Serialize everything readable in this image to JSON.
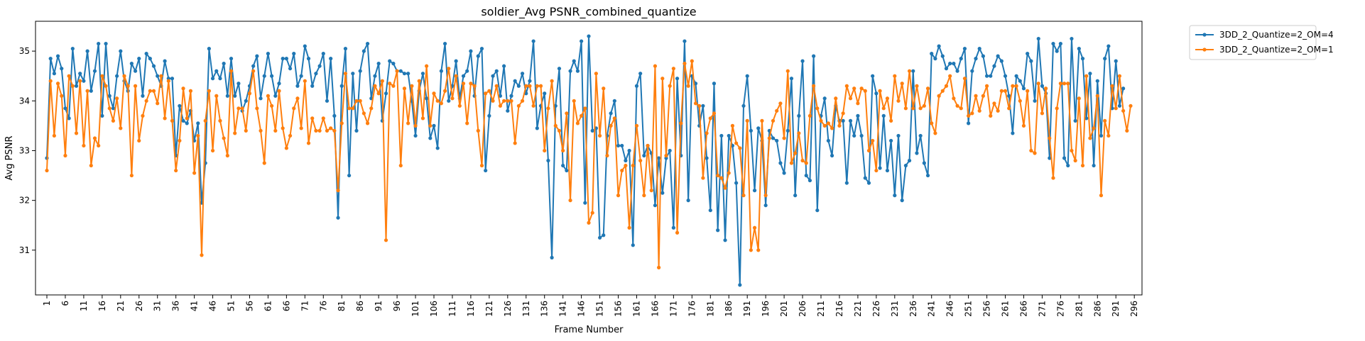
{
  "chart_data": {
    "type": "line",
    "title": "soldier_Avg PSNR_combined_quantize",
    "xlabel": "Frame Number",
    "ylabel": "Avg PSNR",
    "xlim": [
      1,
      300
    ],
    "ylim": [
      30.1,
      35.6
    ],
    "yticks": [
      31,
      32,
      33,
      34,
      35
    ],
    "xticks": [
      1,
      6,
      11,
      16,
      21,
      26,
      31,
      36,
      41,
      46,
      51,
      56,
      61,
      66,
      71,
      76,
      81,
      86,
      91,
      96,
      101,
      106,
      111,
      116,
      121,
      126,
      131,
      136,
      141,
      146,
      151,
      156,
      161,
      166,
      171,
      176,
      181,
      186,
      191,
      196,
      201,
      206,
      211,
      216,
      221,
      226,
      231,
      236,
      241,
      246,
      251,
      256,
      261,
      266,
      271,
      276,
      281,
      286,
      291,
      296
    ],
    "legend_position": "outside-top-right",
    "grid": false,
    "series": [
      {
        "name": "3DD_2_Quantize=2_OM=4",
        "color": "#1f77b4",
        "values": [
          32.85,
          34.85,
          34.55,
          34.9,
          34.65,
          33.85,
          33.65,
          35.05,
          34.3,
          34.55,
          34.4,
          35.0,
          34.2,
          34.6,
          35.15,
          33.7,
          35.15,
          34.1,
          33.85,
          34.5,
          35.0,
          34.4,
          34.2,
          34.75,
          34.6,
          34.85,
          34.1,
          34.95,
          34.85,
          34.7,
          34.5,
          34.3,
          34.8,
          34.45,
          34.45,
          32.9,
          33.9,
          33.6,
          33.55,
          33.8,
          33.2,
          33.55,
          31.95,
          32.75,
          35.05,
          34.45,
          34.6,
          34.45,
          34.75,
          34.1,
          34.85,
          34.1,
          34.35,
          33.8,
          34.0,
          34.3,
          34.7,
          34.9,
          34.05,
          34.5,
          34.95,
          34.5,
          34.1,
          34.35,
          34.85,
          34.85,
          34.65,
          34.95,
          34.3,
          34.5,
          35.1,
          34.85,
          34.3,
          34.55,
          34.7,
          34.95,
          34.0,
          34.85,
          33.7,
          31.65,
          34.3,
          35.05,
          32.5,
          34.55,
          33.4,
          34.6,
          35.0,
          35.15,
          34.05,
          34.5,
          34.75,
          33.6,
          34.15,
          34.8,
          34.75,
          34.6,
          34.6,
          34.55,
          34.55,
          34.0,
          33.3,
          34.2,
          34.55,
          34.05,
          33.25,
          33.5,
          33.05,
          34.6,
          35.15,
          34.0,
          34.3,
          34.8,
          34.05,
          34.5,
          34.6,
          35.0,
          34.1,
          34.9,
          35.05,
          32.6,
          33.7,
          34.5,
          34.6,
          34.1,
          34.7,
          33.8,
          34.1,
          34.4,
          34.3,
          34.55,
          34.15,
          34.4,
          35.2,
          33.45,
          33.9,
          34.15,
          32.8,
          30.85,
          33.9,
          34.65,
          32.7,
          32.6,
          34.6,
          34.8,
          34.6,
          35.2,
          31.95,
          35.3,
          33.4,
          33.45,
          31.25,
          31.3,
          33.3,
          33.75,
          34.0,
          33.1,
          33.1,
          32.8,
          33.0,
          31.1,
          34.3,
          34.55,
          32.9,
          33.1,
          32.95,
          31.9,
          32.85,
          32.15,
          32.85,
          33.0,
          31.45,
          34.45,
          32.9,
          35.2,
          32.0,
          34.5,
          34.35,
          33.5,
          33.9,
          32.85,
          31.8,
          34.35,
          31.4,
          33.3,
          31.2,
          33.3,
          33.1,
          32.35,
          30.3,
          33.9,
          34.5,
          33.4,
          32.2,
          33.45,
          33.2,
          31.9,
          33.4,
          33.25,
          33.2,
          32.75,
          32.55,
          33.4,
          34.45,
          32.1,
          33.7,
          34.8,
          32.5,
          32.4,
          34.9,
          31.8,
          33.7,
          34.05,
          33.2,
          32.9,
          33.9,
          33.6,
          33.6,
          32.35,
          33.6,
          33.3,
          33.7,
          33.3,
          32.45,
          32.35,
          34.5,
          34.15,
          32.65,
          33.7,
          32.6,
          33.2,
          32.1,
          33.3,
          32.0,
          32.7,
          32.8,
          34.6,
          32.95,
          33.3,
          32.75,
          32.5,
          34.95,
          34.85,
          35.1,
          34.9,
          34.65,
          34.75,
          34.75,
          34.6,
          34.85,
          35.05,
          33.55,
          34.6,
          34.85,
          35.05,
          34.9,
          34.5,
          34.5,
          34.7,
          34.9,
          34.8,
          34.5,
          34.1,
          33.35,
          34.5,
          34.4,
          34.25,
          34.95,
          34.8,
          34.0,
          35.25,
          34.3,
          34.15,
          32.85,
          35.15,
          35.0,
          35.15,
          32.85,
          32.7,
          35.25,
          33.6,
          35.05,
          34.85,
          33.65,
          34.55,
          32.7,
          34.4,
          33.3,
          34.85,
          35.1,
          33.85,
          34.8,
          33.9,
          34.25
        ]
      },
      {
        "name": "3DD_2_Quantize=2_OM=1",
        "color": "#ff7f0e",
        "values": [
          32.6,
          34.4,
          33.3,
          34.35,
          34.1,
          32.9,
          34.5,
          34.3,
          33.35,
          34.4,
          33.1,
          34.2,
          32.7,
          33.25,
          33.1,
          34.5,
          34.3,
          33.85,
          33.6,
          34.05,
          33.45,
          34.5,
          34.3,
          32.5,
          34.3,
          33.2,
          33.7,
          34.0,
          34.2,
          34.2,
          33.95,
          34.5,
          33.65,
          34.4,
          33.6,
          32.6,
          33.2,
          34.25,
          33.65,
          34.2,
          32.55,
          33.3,
          30.9,
          33.6,
          34.2,
          33.0,
          34.1,
          33.6,
          33.25,
          32.9,
          34.6,
          33.35,
          33.85,
          33.85,
          33.4,
          34.15,
          34.6,
          33.85,
          33.4,
          32.75,
          34.1,
          33.9,
          33.4,
          34.2,
          33.45,
          33.05,
          33.3,
          33.85,
          34.05,
          33.45,
          34.4,
          33.15,
          33.65,
          33.4,
          33.4,
          33.65,
          33.4,
          33.45,
          33.4,
          32.2,
          33.55,
          34.55,
          33.85,
          33.85,
          34.0,
          34.0,
          33.75,
          33.55,
          33.85,
          34.3,
          34.15,
          34.4,
          31.2,
          34.35,
          34.3,
          34.6,
          32.7,
          34.25,
          33.55,
          34.3,
          33.5,
          34.4,
          33.65,
          34.7,
          33.5,
          34.15,
          34.0,
          33.95,
          34.2,
          34.65,
          34.05,
          34.5,
          33.9,
          34.35,
          33.55,
          34.35,
          34.3,
          33.4,
          32.7,
          34.15,
          34.2,
          34.0,
          34.3,
          33.9,
          34.0,
          34.0,
          34.0,
          33.15,
          33.9,
          34.0,
          34.3,
          34.3,
          33.9,
          34.3,
          34.3,
          33.0,
          33.85,
          34.4,
          33.5,
          33.4,
          33.0,
          33.75,
          32.0,
          34.0,
          33.55,
          33.7,
          33.85,
          31.55,
          31.75,
          34.55,
          33.3,
          34.25,
          32.9,
          33.5,
          33.65,
          32.1,
          32.6,
          32.7,
          31.45,
          32.7,
          33.5,
          32.8,
          32.1,
          33.1,
          32.2,
          34.7,
          30.65,
          34.45,
          32.9,
          34.3,
          34.65,
          31.35,
          33.55,
          34.75,
          34.3,
          34.8,
          33.95,
          33.9,
          32.45,
          33.35,
          33.65,
          33.75,
          32.5,
          32.45,
          32.25,
          32.55,
          33.5,
          33.15,
          33.05,
          32.1,
          33.6,
          31.0,
          31.45,
          31.0,
          33.6,
          32.1,
          33.25,
          33.6,
          33.8,
          33.95,
          33.25,
          34.6,
          32.75,
          32.95,
          33.35,
          32.8,
          32.75,
          33.7,
          34.3,
          33.85,
          33.6,
          33.5,
          33.55,
          33.45,
          34.05,
          33.5,
          33.75,
          34.3,
          34.05,
          34.25,
          33.95,
          34.25,
          34.2,
          33.0,
          33.2,
          32.6,
          34.2,
          33.85,
          34.05,
          33.6,
          34.5,
          34.0,
          34.35,
          33.85,
          34.6,
          33.85,
          34.3,
          33.85,
          33.9,
          34.25,
          33.55,
          33.35,
          34.1,
          34.2,
          34.3,
          34.5,
          34.05,
          33.9,
          33.85,
          34.45,
          33.7,
          33.75,
          34.1,
          33.8,
          34.1,
          34.3,
          33.7,
          33.95,
          33.8,
          34.2,
          34.2,
          33.85,
          34.3,
          34.3,
          34.0,
          33.5,
          34.2,
          33.0,
          32.95,
          34.35,
          33.75,
          34.25,
          33.25,
          32.45,
          33.85,
          34.35,
          34.35,
          34.35,
          33.0,
          32.8,
          34.05,
          32.7,
          34.5,
          33.25,
          33.45,
          34.1,
          32.1,
          33.6,
          33.3,
          34.3,
          33.85,
          34.5,
          33.8,
          33.4,
          33.9
        ]
      }
    ]
  }
}
